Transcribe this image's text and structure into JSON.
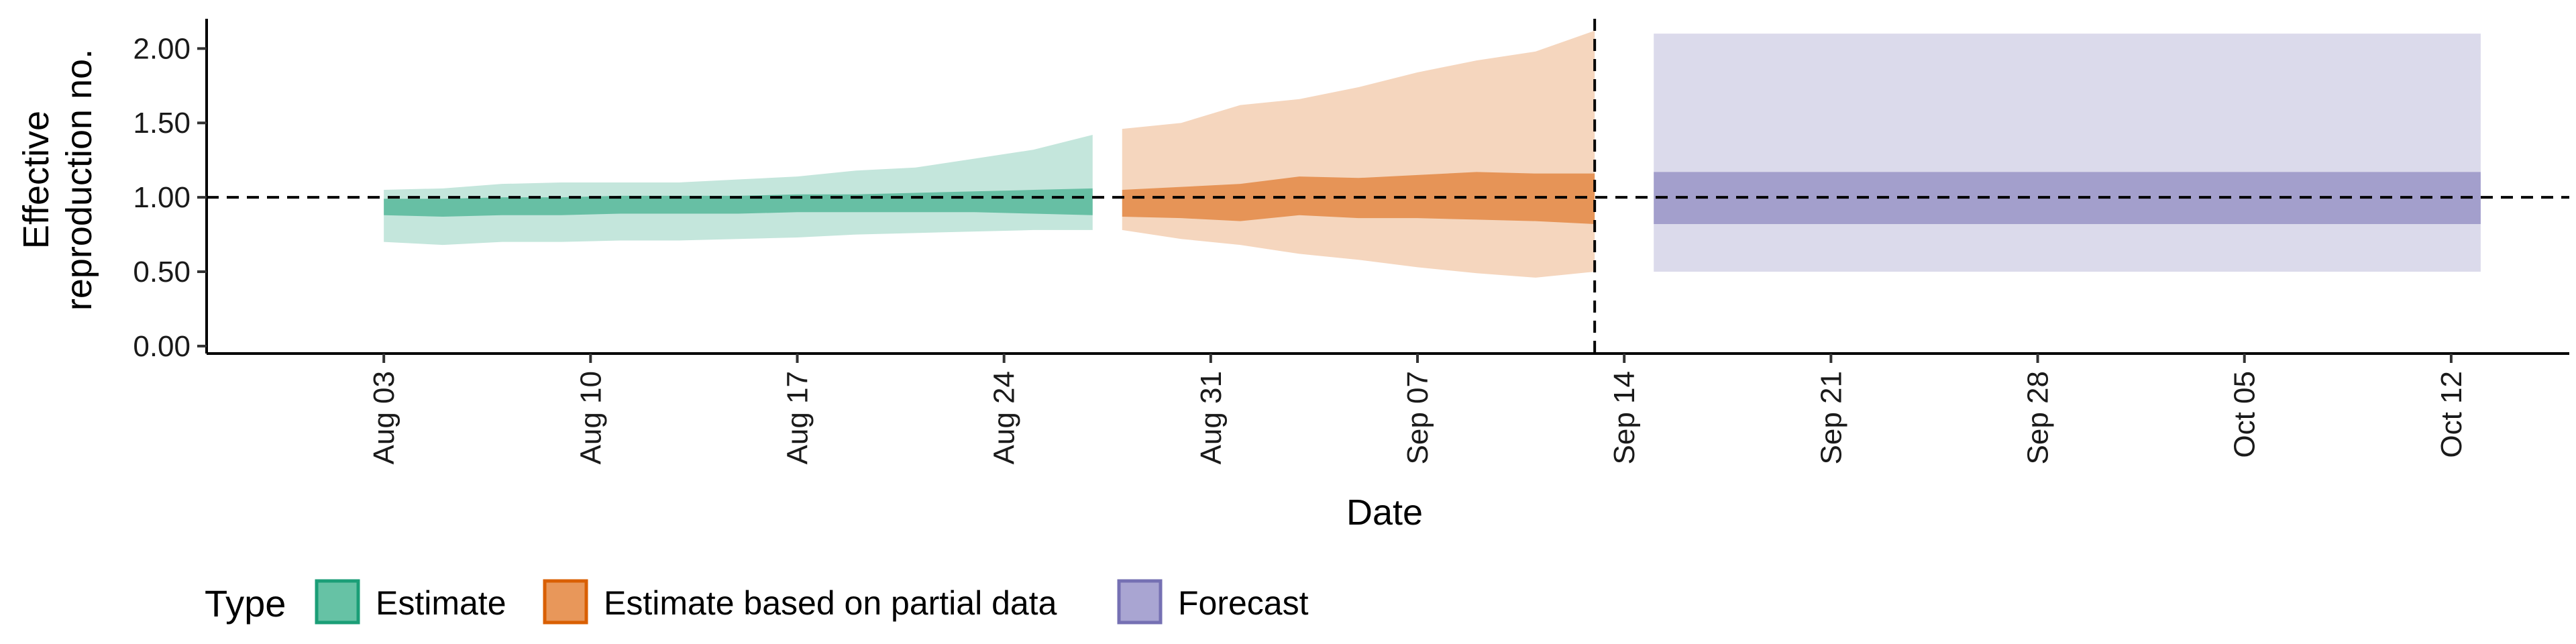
{
  "chart_data": {
    "type": "area",
    "xlabel": "Date",
    "ylabel_lines": [
      "Effective",
      "reproduction no."
    ],
    "ylim": [
      -0.05,
      2.2
    ],
    "y_ticks": [
      0.0,
      0.5,
      1.0,
      1.5,
      2.0
    ],
    "y_tick_labels": [
      "0.00",
      "0.50",
      "1.00",
      "1.50",
      "2.00"
    ],
    "x_range": [
      "2020-07-28",
      "2020-10-16"
    ],
    "x_ticks": [
      "2020-08-03",
      "2020-08-10",
      "2020-08-17",
      "2020-08-24",
      "2020-08-31",
      "2020-09-07",
      "2020-09-14",
      "2020-09-21",
      "2020-09-28",
      "2020-10-05",
      "2020-10-12"
    ],
    "x_tick_labels": [
      "Aug 03",
      "Aug 10",
      "Aug 17",
      "Aug 24",
      "Aug 31",
      "Sep 07",
      "Sep 14",
      "Sep 21",
      "Sep 28",
      "Oct 05",
      "Oct 12"
    ],
    "reference_line_y": 1.0,
    "vertical_line_date": "2020-09-13",
    "legend": {
      "title": "Type",
      "position": "bottom",
      "items": [
        {
          "label": "Estimate",
          "fill": "#66c2a5",
          "stroke": "#1b9e77"
        },
        {
          "label": "Estimate based on partial data",
          "fill": "#e8975a",
          "stroke": "#d95f02"
        },
        {
          "label": "Forecast",
          "fill": "#a9a5d2",
          "stroke": "#7570b3"
        }
      ]
    },
    "series": [
      {
        "name": "Estimate",
        "color": "#1b9e77",
        "x": [
          "2020-08-03",
          "2020-08-05",
          "2020-08-07",
          "2020-08-09",
          "2020-08-11",
          "2020-08-13",
          "2020-08-15",
          "2020-08-17",
          "2020-08-19",
          "2020-08-21",
          "2020-08-23",
          "2020-08-25",
          "2020-08-27"
        ],
        "median": [
          0.93,
          0.93,
          0.94,
          0.94,
          0.95,
          0.95,
          0.95,
          0.96,
          0.96,
          0.96,
          0.97,
          0.97,
          0.98
        ],
        "lower_50": [
          0.88,
          0.87,
          0.88,
          0.88,
          0.89,
          0.89,
          0.89,
          0.9,
          0.9,
          0.9,
          0.9,
          0.89,
          0.88
        ],
        "upper_50": [
          0.99,
          0.99,
          1.0,
          1.0,
          1.01,
          1.01,
          1.01,
          1.02,
          1.02,
          1.03,
          1.04,
          1.05,
          1.06
        ],
        "lower_90": [
          0.7,
          0.68,
          0.7,
          0.7,
          0.71,
          0.71,
          0.72,
          0.73,
          0.75,
          0.76,
          0.77,
          0.78,
          0.78
        ],
        "upper_90": [
          1.05,
          1.06,
          1.09,
          1.1,
          1.1,
          1.1,
          1.12,
          1.14,
          1.18,
          1.2,
          1.26,
          1.32,
          1.42
        ]
      },
      {
        "name": "Estimate based on partial data",
        "color": "#d95f02",
        "x": [
          "2020-08-28",
          "2020-08-30",
          "2020-09-01",
          "2020-09-03",
          "2020-09-05",
          "2020-09-07",
          "2020-09-09",
          "2020-09-11",
          "2020-09-13"
        ],
        "median": [
          0.96,
          0.97,
          0.99,
          1.01,
          1.0,
          1.0,
          1.01,
          1.01,
          1.0
        ],
        "lower_50": [
          0.87,
          0.86,
          0.84,
          0.88,
          0.86,
          0.86,
          0.85,
          0.84,
          0.82
        ],
        "upper_50": [
          1.05,
          1.07,
          1.09,
          1.14,
          1.13,
          1.15,
          1.17,
          1.16,
          1.16
        ],
        "lower_90": [
          0.78,
          0.72,
          0.68,
          0.62,
          0.58,
          0.53,
          0.49,
          0.46,
          0.5
        ],
        "upper_90": [
          1.46,
          1.5,
          1.62,
          1.66,
          1.74,
          1.84,
          1.92,
          1.98,
          2.12
        ]
      },
      {
        "name": "Forecast",
        "color": "#7570b3",
        "x": [
          "2020-09-15",
          "2020-10-13"
        ],
        "median": [
          1.0,
          1.0
        ],
        "lower_50": [
          0.82,
          0.82
        ],
        "upper_50": [
          1.17,
          1.17
        ],
        "lower_90": [
          0.5,
          0.5
        ],
        "upper_90": [
          2.1,
          2.1
        ]
      }
    ]
  }
}
